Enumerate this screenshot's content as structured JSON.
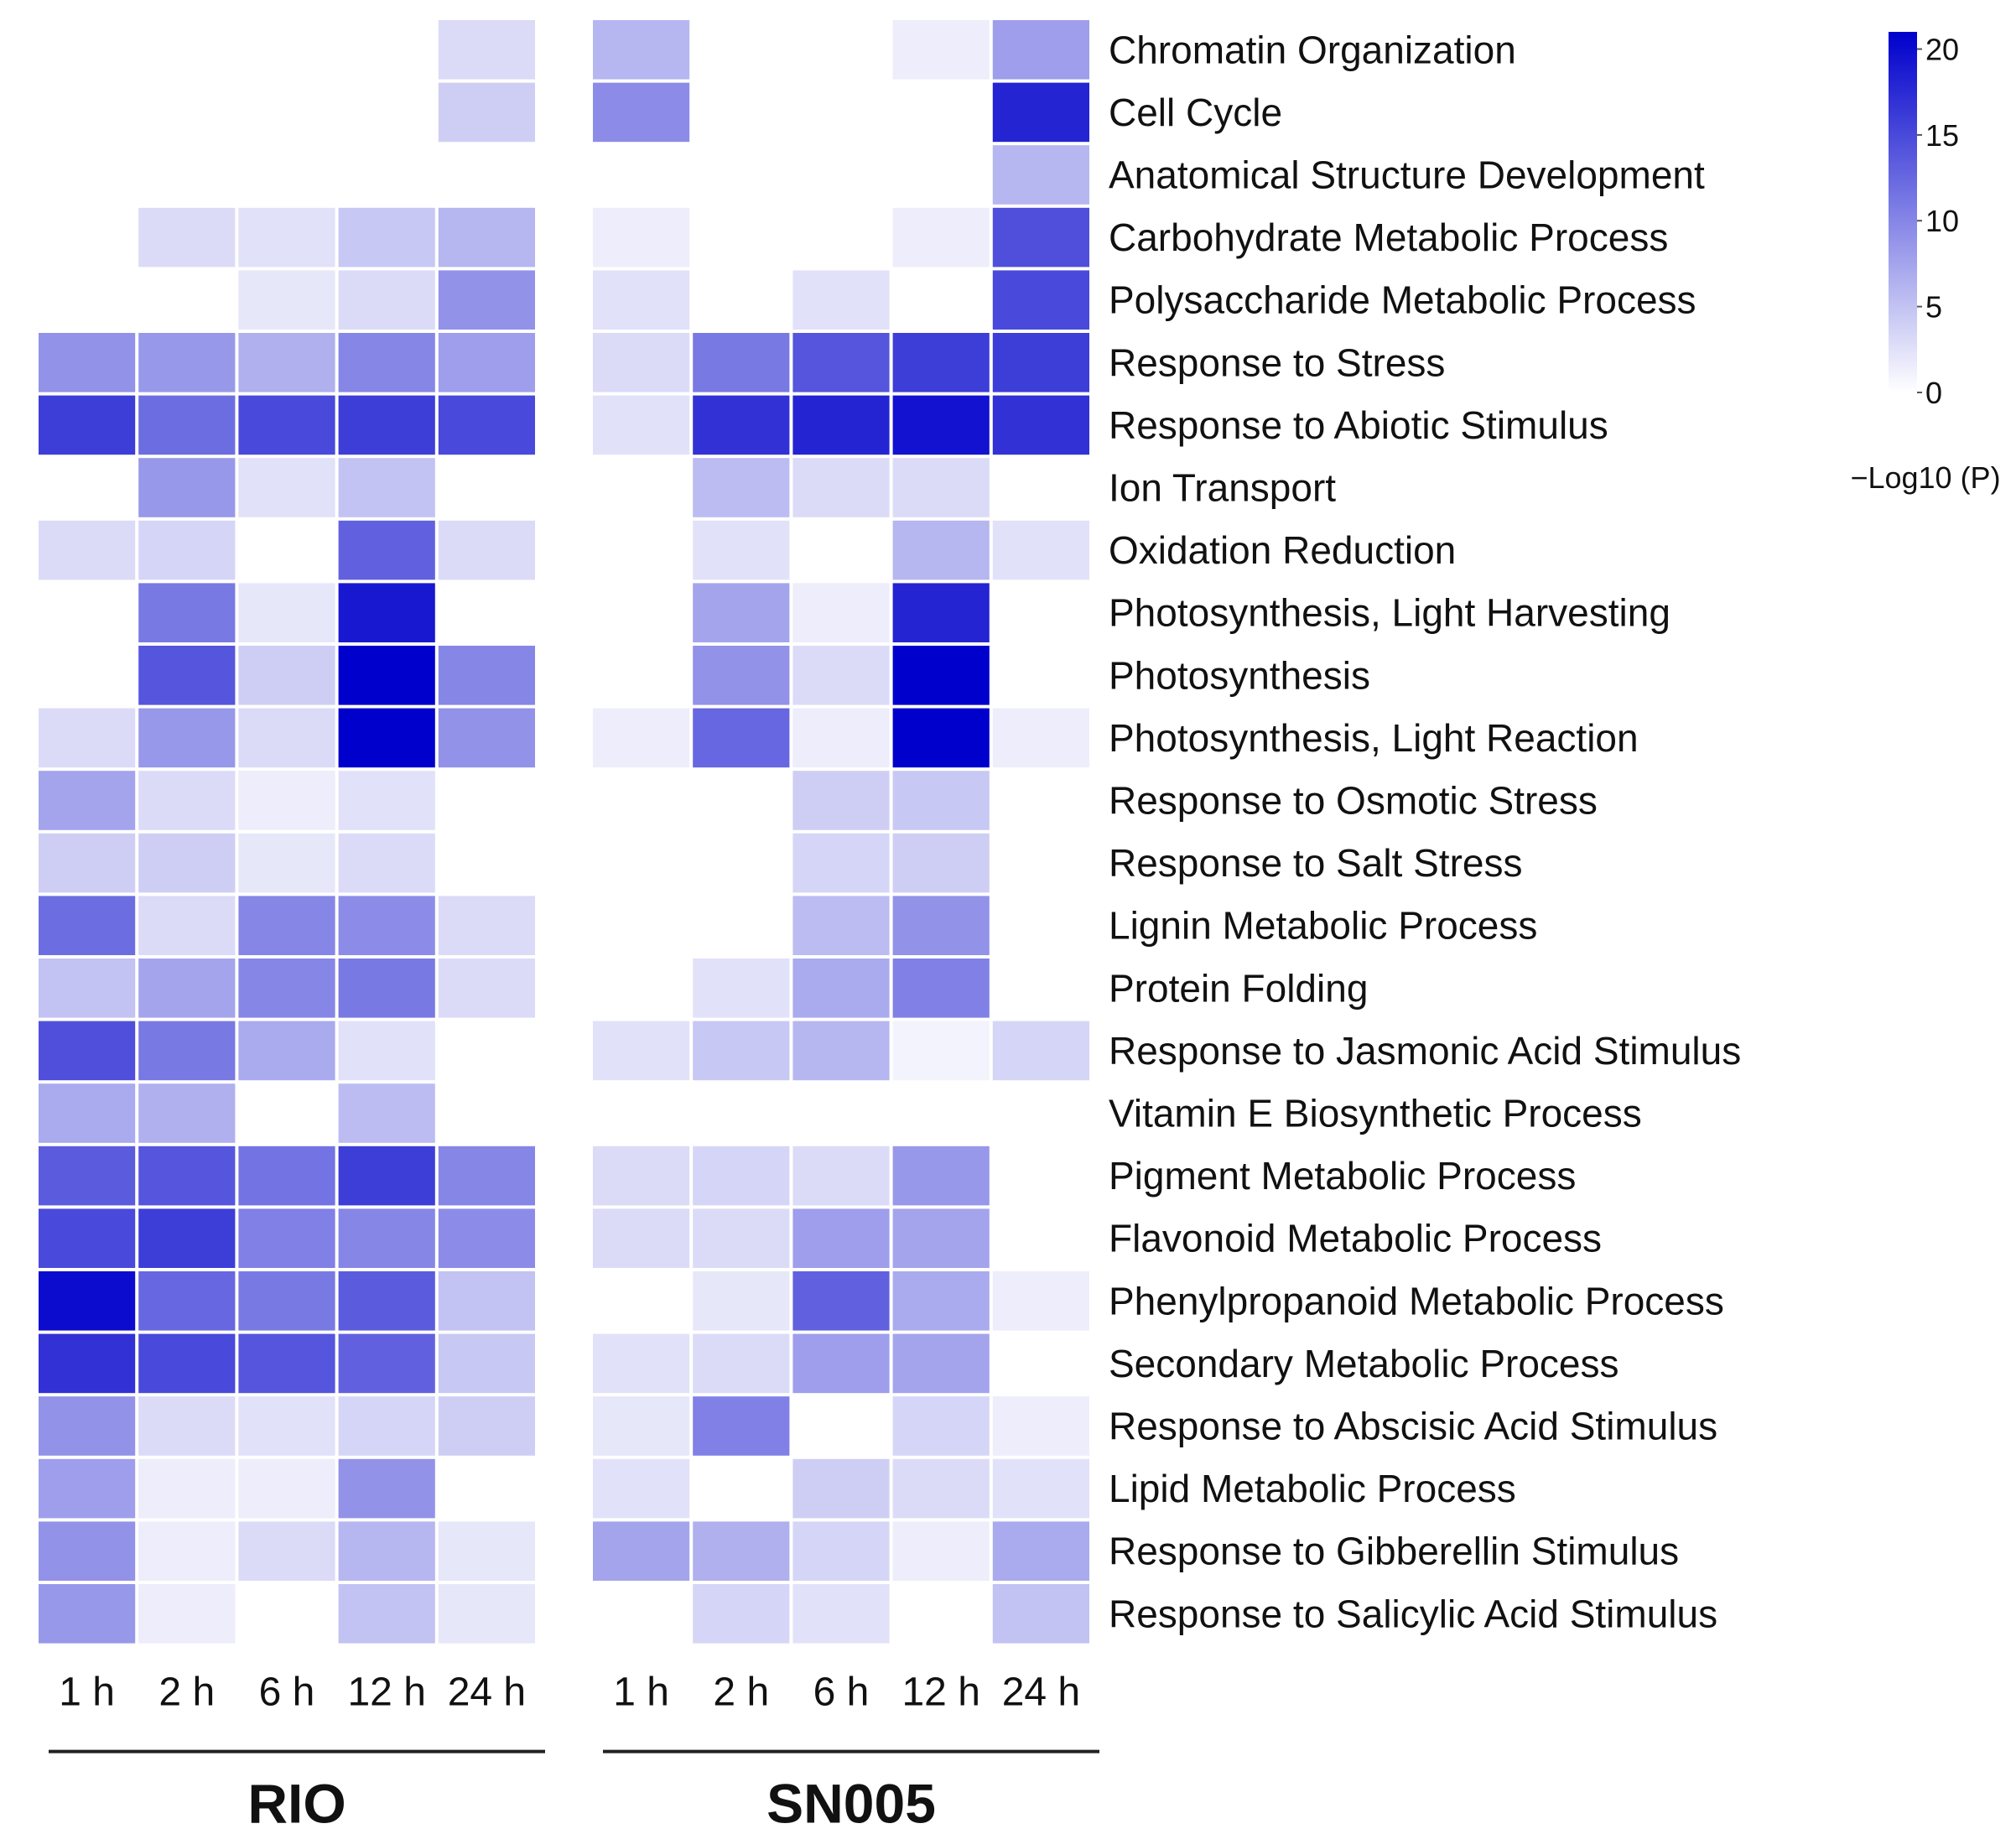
{
  "chart_data": {
    "type": "heatmap",
    "colormap": {
      "low": "#ffffff",
      "high": "#0000cc"
    },
    "colorbar": {
      "title": "−Log10 (P)",
      "ticks": [
        0,
        5,
        10,
        15,
        20
      ],
      "range": [
        0,
        21
      ]
    },
    "terms": [
      "Chromatin Organization",
      "Cell Cycle",
      "Anatomical Structure Development",
      "Carbohydrate Metabolic Process",
      "Polysaccharide Metabolic Process",
      "Response to Stress",
      "Response to Abiotic Stimulus",
      "Ion Transport",
      "Oxidation Reduction",
      "Photosynthesis, Light Harvesting",
      "Photosynthesis",
      "Photosynthesis, Light Reaction",
      "Response to Osmotic Stress",
      "Response to Salt Stress",
      "Lignin Metabolic Process",
      "Protein Folding",
      "Response to Jasmonic Acid Stimulus",
      "Vitamin E Biosynthetic Process",
      "Pigment Metabolic Process",
      "Flavonoid Metabolic Process",
      "Phenylpropanoid Metabolic Process",
      "Secondary Metabolic Process",
      "Response to Abscisic Acid Stimulus",
      "Lipid Metabolic Process",
      "Response to Gibberellin Stimulus",
      "Response to Salicylic Acid Stimulus"
    ],
    "groups": [
      {
        "name": "RIO",
        "timepoints": [
          "1 h",
          "2 h",
          "6 h",
          "12 h",
          "24 h"
        ],
        "values": [
          [
            0,
            0,
            0,
            0,
            3
          ],
          [
            0,
            0,
            0,
            0,
            4
          ],
          [
            0,
            0,
            0,
            0,
            0
          ],
          [
            0,
            3,
            2.5,
            4.5,
            6
          ],
          [
            0,
            0,
            2,
            3,
            9
          ],
          [
            9,
            8.5,
            6.5,
            10,
            8
          ],
          [
            16,
            12,
            15,
            16,
            15
          ],
          [
            0,
            8.5,
            2.5,
            5,
            0
          ],
          [
            3,
            3.5,
            0,
            13,
            3
          ],
          [
            0,
            11,
            2,
            19,
            0
          ],
          [
            0,
            14,
            4,
            21,
            10
          ],
          [
            3,
            8.5,
            3,
            21,
            9
          ],
          [
            7.5,
            3,
            1.5,
            2.5,
            0
          ],
          [
            4,
            4,
            2,
            3,
            0
          ],
          [
            12,
            3,
            10,
            9.5,
            3
          ],
          [
            5,
            7.5,
            10,
            11,
            3
          ],
          [
            14.5,
            11,
            7,
            2.5,
            0
          ],
          [
            7,
            6.5,
            0,
            5.5,
            0
          ],
          [
            13.5,
            14,
            11.5,
            16,
            10
          ],
          [
            15,
            16,
            10.5,
            10,
            9.5
          ],
          [
            20,
            12.5,
            11,
            13.5,
            5
          ],
          [
            17,
            15,
            14,
            13,
            4.5
          ],
          [
            9,
            3,
            2.5,
            3.5,
            4
          ],
          [
            8,
            1.5,
            1.5,
            9,
            0
          ],
          [
            9,
            1.5,
            3,
            6,
            2
          ],
          [
            8.5,
            1.5,
            0,
            5,
            2
          ]
        ]
      },
      {
        "name": "SN005",
        "timepoints": [
          "1 h",
          "2 h",
          "6 h",
          "12 h",
          "24 h"
        ],
        "values": [
          [
            6,
            0,
            0,
            1.5,
            8
          ],
          [
            9.5,
            0,
            0,
            0,
            18
          ],
          [
            0,
            0,
            0,
            0,
            6
          ],
          [
            1.5,
            0,
            0,
            1.5,
            14.5
          ],
          [
            2.5,
            0,
            2.5,
            0,
            15
          ],
          [
            3,
            11,
            14,
            16,
            16
          ],
          [
            2.5,
            17,
            18,
            19.5,
            17
          ],
          [
            0,
            5.5,
            3,
            3,
            0
          ],
          [
            0,
            2.5,
            0,
            6,
            2.5
          ],
          [
            0,
            7.5,
            1.5,
            18,
            0
          ],
          [
            0,
            9,
            3,
            21,
            0
          ],
          [
            1.5,
            12.5,
            1.5,
            21,
            1.5
          ],
          [
            0,
            0,
            4,
            4.5,
            0
          ],
          [
            0,
            0,
            3.5,
            4,
            0
          ],
          [
            0,
            0,
            5.5,
            9,
            0
          ],
          [
            0,
            2.5,
            7,
            10.5,
            0
          ],
          [
            2.5,
            4.5,
            6,
            1,
            3.5
          ],
          [
            0,
            0,
            0,
            0,
            0
          ],
          [
            3,
            3.5,
            3,
            8.5,
            0
          ],
          [
            3,
            3,
            8,
            7.5,
            0
          ],
          [
            0,
            2,
            13,
            7,
            1.5
          ],
          [
            2.5,
            3,
            8,
            7.5,
            0
          ],
          [
            2,
            10.5,
            0,
            3.5,
            1.5
          ],
          [
            2.5,
            0,
            4,
            3,
            2.5
          ],
          [
            7.5,
            6.5,
            3.5,
            1.5,
            7
          ],
          [
            0,
            3.5,
            2.5,
            0,
            5
          ]
        ]
      }
    ]
  }
}
